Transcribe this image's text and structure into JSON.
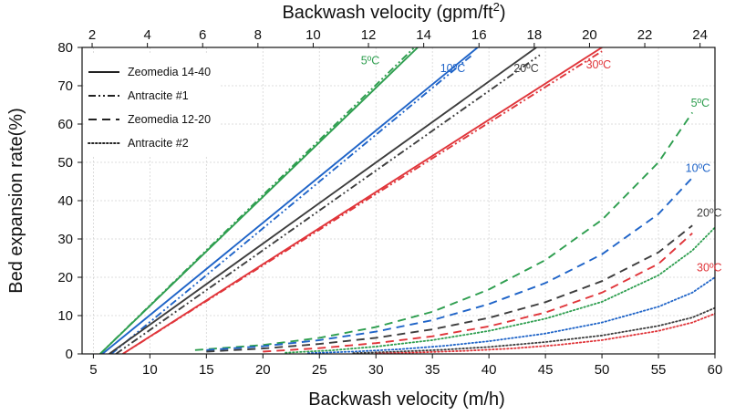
{
  "chart_data": {
    "type": "line",
    "xlabel": "Backwash velocity (m/h)",
    "x2label_base": "Backwash velocity (gpm/ft",
    "x2label_sup": "2",
    "x2label_end": ")",
    "ylabel": "Bed expansion rate(%)",
    "xlim": [
      4,
      60
    ],
    "ylim": [
      0,
      80
    ],
    "x_ticks": [
      5,
      10,
      15,
      20,
      25,
      30,
      35,
      40,
      45,
      50,
      55,
      60
    ],
    "y_ticks": [
      0,
      10,
      20,
      30,
      40,
      50,
      60,
      70,
      80
    ],
    "x2_ticks": [
      2,
      4,
      6,
      8,
      10,
      12,
      14,
      16,
      18,
      20,
      22,
      24
    ],
    "x2_conversion_m_h_per_gpm_ft2": 2.445,
    "grid": true,
    "legend": {
      "placement": "top-left",
      "entries": [
        {
          "label": "Zeomedia 14-40",
          "style": "solid"
        },
        {
          "label": "Antracite #1",
          "style": "dashdotdot"
        },
        {
          "label": "Zeomedia 12-20",
          "style": "dashed"
        },
        {
          "label": "Antracite #2",
          "style": "dotted"
        }
      ]
    },
    "temperature_colors": {
      "5ºC": "#2e9e4f",
      "10ºC": "#1f64c8",
      "20ºC": "#3d3d3d",
      "30ºC": "#e0353a"
    },
    "annotations": [
      {
        "text": "5ºC",
        "x": 29.5,
        "y": 76.5,
        "color": "#2e9e4f"
      },
      {
        "text": "10ºC",
        "x": 36.8,
        "y": 74.5,
        "color": "#1f64c8"
      },
      {
        "text": "20ºC",
        "x": 43.3,
        "y": 74.5,
        "color": "#3d3d3d"
      },
      {
        "text": "30ºC",
        "x": 49.7,
        "y": 75.5,
        "color": "#e0353a"
      },
      {
        "text": "5ºC",
        "x": 58.7,
        "y": 65.5,
        "color": "#2e9e4f"
      },
      {
        "text": "10ºC",
        "x": 58.5,
        "y": 48.5,
        "color": "#1f64c8"
      },
      {
        "text": "20ºC",
        "x": 59.5,
        "y": 36.8,
        "color": "#3d3d3d"
      },
      {
        "text": "30ºC",
        "x": 59.5,
        "y": 22.5,
        "color": "#e0353a"
      }
    ],
    "series": [
      {
        "material": "Zeomedia 14-40",
        "temp": "5ºC",
        "color": "#2e9e4f",
        "style": "solid",
        "x": [
          5.6,
          33.7
        ],
        "y": [
          0,
          80
        ]
      },
      {
        "material": "Antracite #1",
        "temp": "5ºC",
        "color": "#2e9e4f",
        "style": "dashdotdot",
        "x": [
          5.6,
          33.4
        ],
        "y": [
          0,
          80
        ]
      },
      {
        "material": "Zeomedia 14-40",
        "temp": "10ºC",
        "color": "#1f64c8",
        "style": "solid",
        "x": [
          5.8,
          39.0
        ],
        "y": [
          0,
          80
        ]
      },
      {
        "material": "Antracite #1",
        "temp": "10ºC",
        "color": "#1f64c8",
        "style": "dashdotdot",
        "x": [
          6.6,
          38.5
        ],
        "y": [
          0,
          78
        ]
      },
      {
        "material": "Zeomedia 14-40",
        "temp": "20ºC",
        "color": "#3d3d3d",
        "style": "solid",
        "x": [
          6.4,
          44.2
        ],
        "y": [
          0,
          80
        ]
      },
      {
        "material": "Antracite #1",
        "temp": "20ºC",
        "color": "#3d3d3d",
        "style": "dashdotdot",
        "x": [
          7.0,
          44.5
        ],
        "y": [
          0,
          78
        ]
      },
      {
        "material": "Zeomedia 14-40",
        "temp": "30ºC",
        "color": "#e0353a",
        "style": "solid",
        "x": [
          7.6,
          50.0
        ],
        "y": [
          0,
          80
        ]
      },
      {
        "material": "Antracite #1",
        "temp": "30ºC",
        "color": "#e0353a",
        "style": "dashdotdot",
        "x": [
          7.6,
          50.0
        ],
        "y": [
          0,
          79
        ]
      },
      {
        "material": "Zeomedia 12-20",
        "temp": "5ºC",
        "color": "#2e9e4f",
        "style": "dashed",
        "x": [
          14,
          20,
          25,
          30,
          35,
          40,
          45,
          50,
          55,
          58
        ],
        "y": [
          1.0,
          2.3,
          4.2,
          7.0,
          11.0,
          16.8,
          24.5,
          35.0,
          50.0,
          63.0
        ]
      },
      {
        "material": "Zeomedia 12-20",
        "temp": "10ºC",
        "color": "#1f64c8",
        "style": "dashed",
        "x": [
          15,
          20,
          25,
          30,
          35,
          40,
          45,
          50,
          55,
          58
        ],
        "y": [
          1.0,
          2.0,
          3.6,
          5.8,
          8.8,
          13.0,
          18.5,
          26.0,
          36.5,
          46.0
        ]
      },
      {
        "material": "Zeomedia 12-20",
        "temp": "20ºC",
        "color": "#3d3d3d",
        "style": "dashed",
        "x": [
          15,
          20,
          25,
          30,
          35,
          40,
          45,
          50,
          55,
          58
        ],
        "y": [
          0.6,
          1.4,
          2.6,
          4.2,
          6.4,
          9.4,
          13.5,
          19.0,
          26.5,
          33.5
        ]
      },
      {
        "material": "Zeomedia 12-20",
        "temp": "30ºC",
        "color": "#e0353a",
        "style": "dashed",
        "x": [
          20,
          25,
          30,
          35,
          40,
          45,
          50,
          55,
          58
        ],
        "y": [
          0.6,
          1.5,
          2.8,
          4.6,
          7.2,
          10.8,
          16.0,
          23.5,
          31.5
        ]
      },
      {
        "material": "Antracite #2",
        "temp": "5ºC",
        "color": "#2e9e4f",
        "style": "dotted",
        "x": [
          22,
          26,
          30,
          35,
          40,
          45,
          50,
          55,
          58,
          60
        ],
        "y": [
          0.3,
          0.9,
          1.9,
          3.6,
          6.0,
          9.2,
          13.6,
          20.5,
          27.0,
          33.0
        ]
      },
      {
        "material": "Antracite #2",
        "temp": "10ºC",
        "color": "#1f64c8",
        "style": "dotted",
        "x": [
          24,
          28,
          32,
          36,
          40,
          45,
          50,
          55,
          58,
          60
        ],
        "y": [
          0.2,
          0.6,
          1.2,
          2.1,
          3.3,
          5.3,
          8.2,
          12.3,
          16.0,
          20.0
        ]
      },
      {
        "material": "Antracite #2",
        "temp": "20ºC",
        "color": "#3d3d3d",
        "style": "dotted",
        "x": [
          28,
          32,
          36,
          40,
          45,
          50,
          55,
          58,
          60
        ],
        "y": [
          0.2,
          0.6,
          1.1,
          1.8,
          3.1,
          4.8,
          7.3,
          9.5,
          12.0
        ]
      },
      {
        "material": "Antracite #2",
        "temp": "30ºC",
        "color": "#e0353a",
        "style": "dotted",
        "x": [
          30,
          34,
          38,
          42,
          46,
          50,
          55,
          58,
          60
        ],
        "y": [
          0.1,
          0.4,
          0.8,
          1.4,
          2.3,
          3.6,
          6.0,
          8.2,
          10.5
        ]
      }
    ]
  }
}
